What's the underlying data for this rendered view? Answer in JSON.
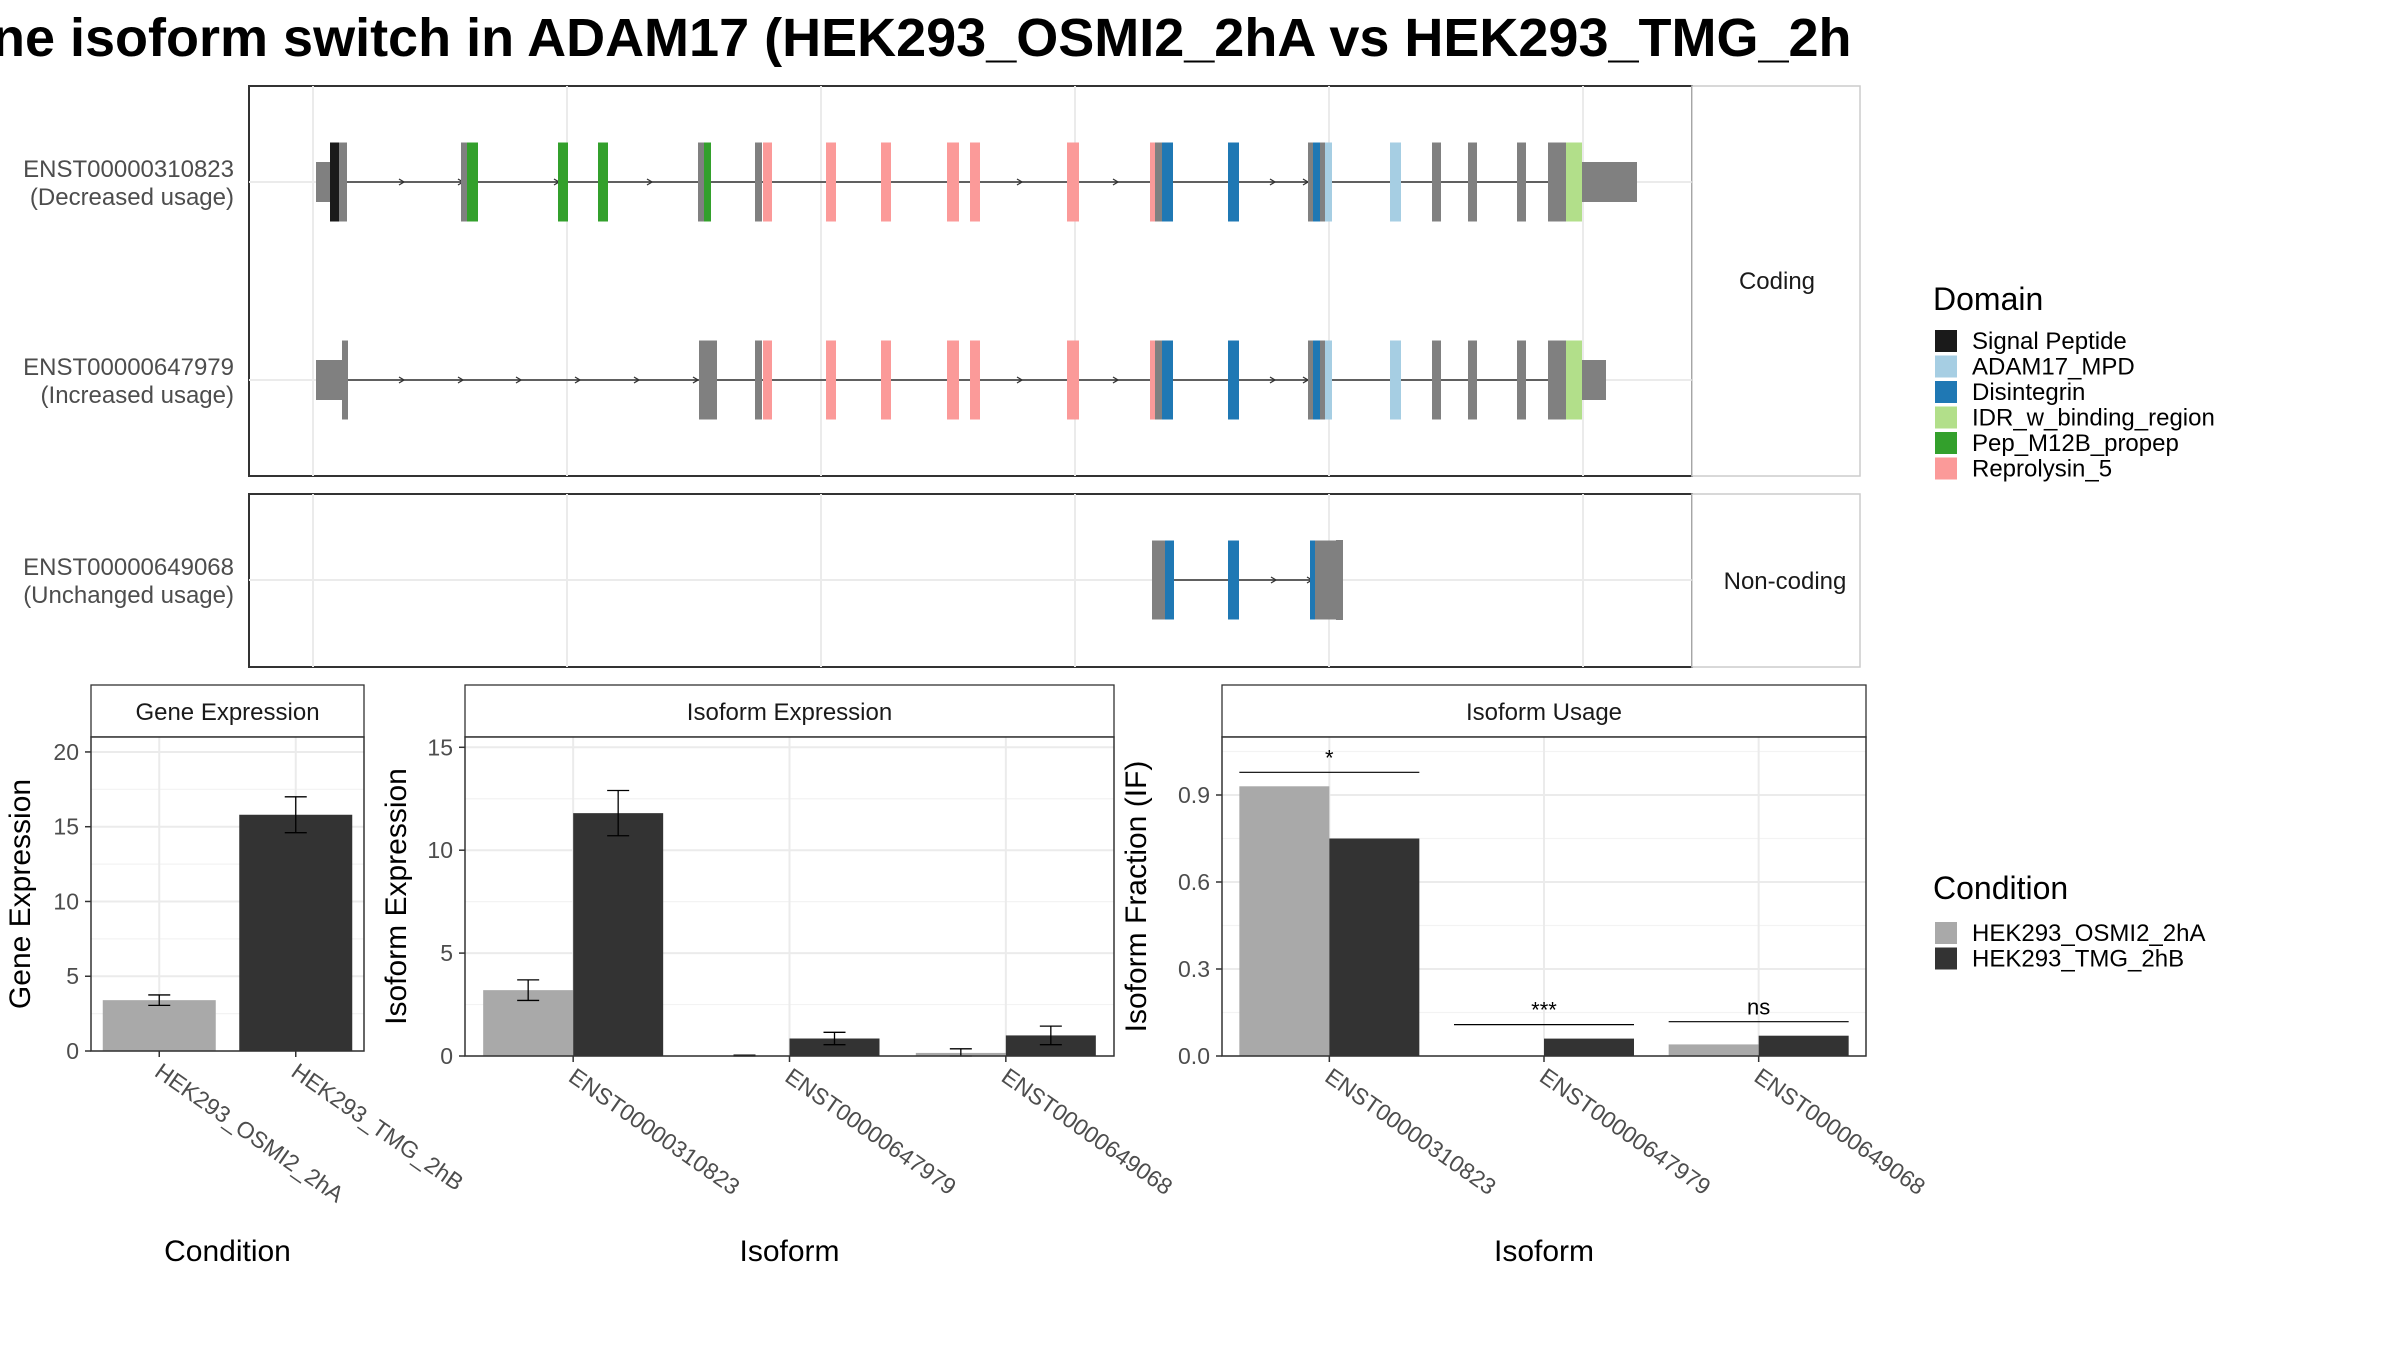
{
  "title": "ne isoform switch in ADAM17 (HEK293_OSMI2_2hA vs HEK293_TMG_2h",
  "structure_panels": {
    "coding": {
      "strip": "Coding",
      "isoforms": [
        {
          "id": "ENST00000310823",
          "usage": "(Decreased usage)"
        },
        {
          "id": "ENST00000647979",
          "usage": "(Increased usage)"
        }
      ]
    },
    "noncoding": {
      "strip": "Non-coding",
      "isoforms": [
        {
          "id": "ENST00000649068",
          "usage": "(Unchanged usage)"
        }
      ]
    }
  },
  "domain_legend": {
    "title": "Domain",
    "items": [
      {
        "label": "Signal Peptide",
        "color": "#1a1a1a"
      },
      {
        "label": "ADAM17_MPD",
        "color": "#a6cee3"
      },
      {
        "label": "Disintegrin",
        "color": "#1f78b4"
      },
      {
        "label": "IDR_w_binding_region",
        "color": "#b2df8a"
      },
      {
        "label": "Pep_M12B_propep",
        "color": "#33a02c"
      },
      {
        "label": "Reprolysin_5",
        "color": "#fb9a99"
      }
    ]
  },
  "condition_legend": {
    "title": "Condition",
    "items": [
      {
        "label": "HEK293_OSMI2_2hA",
        "color": "#a9a9a9"
      },
      {
        "label": "HEK293_TMG_2hB",
        "color": "#333333"
      }
    ]
  },
  "chart_data": [
    {
      "type": "bar",
      "title": "Gene Expression",
      "xlabel": "Condition",
      "ylabel": "Gene Expression",
      "ylim": [
        0,
        21
      ],
      "yticks": [
        "0",
        "5",
        "10",
        "15",
        "20"
      ],
      "categories": [
        "HEK293_OSMI2_2hA",
        "HEK293_TMG_2hB"
      ],
      "values": [
        3.4,
        15.8
      ],
      "errors": [
        0.35,
        1.2
      ],
      "colors": [
        "#a9a9a9",
        "#333333"
      ],
      "grid": true
    },
    {
      "type": "bar",
      "title": "Isoform Expression",
      "xlabel": "Isoform",
      "ylabel": "Isoform Expression",
      "ylim": [
        0,
        15.5
      ],
      "yticks": [
        "0",
        "5",
        "10",
        "15"
      ],
      "categories": [
        "ENST00000310823",
        "ENST00000647979",
        "ENST00000649068"
      ],
      "series": [
        {
          "name": "HEK293_OSMI2_2hA",
          "values": [
            3.2,
            0.02,
            0.15
          ],
          "errors": [
            0.5,
            0.02,
            0.2
          ]
        },
        {
          "name": "HEK293_TMG_2hB",
          "values": [
            11.8,
            0.85,
            1.0
          ],
          "errors": [
            1.1,
            0.3,
            0.45
          ]
        }
      ],
      "grid": true
    },
    {
      "type": "bar",
      "title": "Isoform Usage",
      "xlabel": "Isoform",
      "ylabel": "Isoform Fraction (IF)",
      "ylim": [
        0,
        1.1
      ],
      "yticks": [
        "0.0",
        "0.3",
        "0.6",
        "0.9"
      ],
      "categories": [
        "ENST00000310823",
        "ENST00000647979",
        "ENST00000649068"
      ],
      "series": [
        {
          "name": "HEK293_OSMI2_2hA",
          "values": [
            0.93,
            0.0,
            0.04
          ]
        },
        {
          "name": "HEK293_TMG_2hB",
          "values": [
            0.75,
            0.06,
            0.07
          ]
        }
      ],
      "significance": [
        "*",
        "***",
        "ns"
      ],
      "grid": true
    }
  ]
}
